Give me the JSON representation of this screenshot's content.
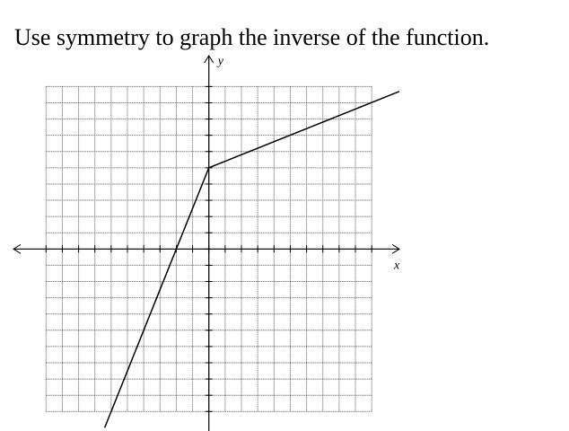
{
  "chart_data": {
    "type": "line",
    "title": "Use symmetry to graph the inverse of the function.",
    "x_label": "x",
    "y_label": "y",
    "x": [
      -6.4,
      0,
      11.7
    ],
    "series": [
      {
        "color": "#000000",
        "values": [
          -11,
          5,
          9.7
        ]
      }
    ],
    "xlim": [
      -12,
      11.7
    ],
    "ylim": [
      -11.2,
      11.9
    ],
    "xticks": [
      -10,
      -9,
      -8,
      -7,
      -6,
      -5,
      -4,
      -3,
      -2,
      -1,
      0,
      1,
      2,
      3,
      4,
      5,
      6,
      7,
      8,
      9,
      10
    ],
    "yticks": [
      -10,
      -9,
      -8,
      -7,
      -6,
      -5,
      -4,
      -3,
      -2,
      -1,
      0,
      1,
      2,
      3,
      4,
      5,
      6,
      7,
      8,
      9,
      10
    ],
    "grid": true
  }
}
